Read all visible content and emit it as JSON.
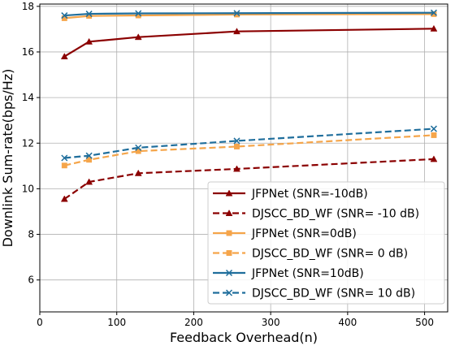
{
  "chart_data": {
    "type": "line",
    "title": "",
    "xlabel": "Feedback Overhead(n)",
    "ylabel": "Downlink Sum-rate(bps/Hz)",
    "xlim": [
      0,
      530
    ],
    "ylim": [
      4.6,
      18.1
    ],
    "xticks": [
      0,
      100,
      200,
      300,
      400,
      500
    ],
    "yticks": [
      6,
      8,
      10,
      12,
      14,
      16,
      18
    ],
    "grid": true,
    "legend_position": "lower-right",
    "x": [
      32,
      64,
      128,
      256,
      512
    ],
    "series": [
      {
        "name": "JFPNet (SNR=-10dB)",
        "values": [
          15.8,
          16.45,
          16.65,
          16.9,
          17.02
        ],
        "color": "#8b0000",
        "dash": "solid",
        "marker": "triangle"
      },
      {
        "name": "DJSCC_BD_WF (SNR= -10 dB)",
        "values": [
          9.55,
          10.3,
          10.68,
          10.87,
          11.3
        ],
        "color": "#8b0000",
        "dash": "dashed",
        "marker": "triangle"
      },
      {
        "name": "JFPNet (SNR=0dB)",
        "values": [
          17.48,
          17.58,
          17.6,
          17.64,
          17.66
        ],
        "color": "#f5a54a",
        "dash": "solid",
        "marker": "square"
      },
      {
        "name": "DJSCC_BD_WF (SNR= 0 dB)",
        "values": [
          11.02,
          11.27,
          11.65,
          11.85,
          12.35
        ],
        "color": "#f5a54a",
        "dash": "dashed",
        "marker": "square"
      },
      {
        "name": "JFPNet (SNR=10dB)",
        "values": [
          17.6,
          17.67,
          17.69,
          17.7,
          17.72
        ],
        "color": "#1f6e9c",
        "dash": "solid",
        "marker": "x"
      },
      {
        "name": "DJSCC_BD_WF (SNR= 10 dB)",
        "values": [
          11.35,
          11.45,
          11.8,
          12.1,
          12.63
        ],
        "color": "#1f6e9c",
        "dash": "dashed",
        "marker": "x"
      }
    ]
  }
}
